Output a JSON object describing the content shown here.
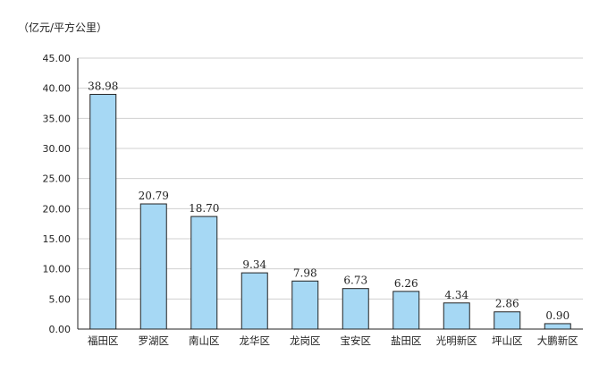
{
  "chart_data": {
    "type": "bar",
    "unit_label": "（亿元/平方公里）",
    "categories": [
      "福田区",
      "罗湖区",
      "南山区",
      "龙华区",
      "龙岗区",
      "宝安区",
      "盐田区",
      "光明新区",
      "坪山区",
      "大鹏新区"
    ],
    "values": [
      38.98,
      20.79,
      18.7,
      9.34,
      7.98,
      6.73,
      6.26,
      4.34,
      2.86,
      0.9
    ],
    "data_labels": [
      "38.98",
      "20.79",
      "18.70",
      "9.34",
      "7.98",
      "6.73",
      "6.26",
      "4.34",
      "2.86",
      "0.90"
    ],
    "y_ticks": [
      "0.00",
      "5.00",
      "10.00",
      "15.00",
      "20.00",
      "25.00",
      "30.00",
      "35.00",
      "40.00",
      "45.00"
    ],
    "ylim": [
      0,
      45
    ],
    "grid": true,
    "bar_color": "#a6d8f4",
    "bar_stroke": "#222222",
    "grid_color": "#d0d0d0"
  }
}
